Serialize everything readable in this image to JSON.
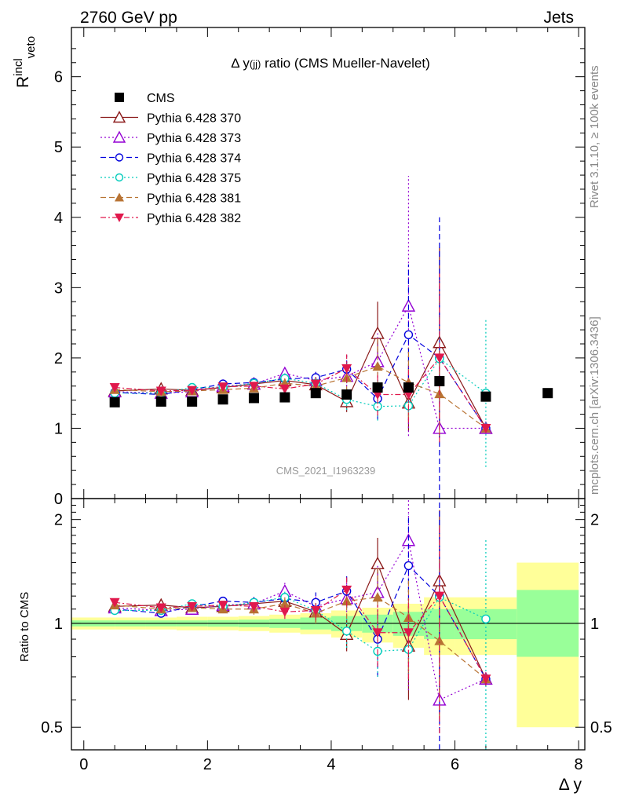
{
  "header": {
    "left": "2760 GeV pp",
    "right": "Jets"
  },
  "side_text": {
    "rivet": "Rivet 3.1.10, ≥ 100k events",
    "mcplots": "mcplots.cern.ch [arXiv:1306.3436]"
  },
  "analysis_id": "CMS_2021_I1963239",
  "chart_data": [
    {
      "type": "scatter",
      "title_main": "Δ y",
      "title_sub": "(jj)",
      "title_rest": " ratio (CMS Mueller-Navelet)",
      "ylabel_main": "R",
      "ylabel_sup": "incl",
      "ylabel_sub": "veto",
      "xlim": [
        -0.2,
        8.1
      ],
      "ylim": [
        0,
        6.7
      ],
      "yticks": [
        0,
        1,
        2,
        3,
        4,
        5,
        6
      ],
      "legend_position": "top-left",
      "series": [
        {
          "name": "CMS",
          "color": "#000000",
          "marker": "square-filled",
          "line": "none",
          "x": [
            0.5,
            1.25,
            1.75,
            2.25,
            2.75,
            3.25,
            3.75,
            4.25,
            4.75,
            5.25,
            5.75,
            6.5,
            7.5
          ],
          "y": [
            1.37,
            1.38,
            1.38,
            1.41,
            1.43,
            1.44,
            1.5,
            1.48,
            1.58,
            1.58,
            1.67,
            1.45,
            1.5
          ]
        },
        {
          "name": "Pythia 6.428 370",
          "color": "#8b1a1a",
          "marker": "triangle-open",
          "line": "solid",
          "x": [
            0.5,
            1.25,
            1.75,
            2.25,
            2.75,
            3.25,
            3.75,
            4.25,
            4.75,
            5.25,
            5.75,
            6.5
          ],
          "y": [
            1.53,
            1.56,
            1.54,
            1.58,
            1.63,
            1.68,
            1.62,
            1.38,
            2.35,
            1.36,
            2.22,
            1.0
          ],
          "err": [
            0.04,
            0.04,
            0.04,
            0.05,
            0.05,
            0.07,
            0.1,
            0.15,
            0.45,
            0.4,
            1.35,
            0.05
          ]
        },
        {
          "name": "Pythia 6.428 373",
          "color": "#9400d3",
          "marker": "triangle-open",
          "line": "dotted",
          "x": [
            0.5,
            1.25,
            1.75,
            2.25,
            2.75,
            3.25,
            3.75,
            4.25,
            4.75,
            5.25,
            5.75,
            6.5
          ],
          "y": [
            1.52,
            1.5,
            1.52,
            1.6,
            1.63,
            1.78,
            1.68,
            1.74,
            1.95,
            2.74,
            1.0,
            1.0
          ],
          "err": [
            0.04,
            0.04,
            0.04,
            0.05,
            0.05,
            0.1,
            0.12,
            0.2,
            0.4,
            1.85,
            0.05,
            0.05
          ]
        },
        {
          "name": "Pythia 6.428 374",
          "color": "#0000dd",
          "marker": "circle-open",
          "line": "dashed",
          "x": [
            0.5,
            1.25,
            1.75,
            2.25,
            2.75,
            3.25,
            3.75,
            4.25,
            4.75,
            5.25,
            5.75,
            6.5
          ],
          "y": [
            1.51,
            1.48,
            1.55,
            1.63,
            1.65,
            1.7,
            1.72,
            1.84,
            1.42,
            2.33,
            2.0,
            1.0
          ],
          "err": [
            0.04,
            0.04,
            0.04,
            0.05,
            0.05,
            0.08,
            0.12,
            0.2,
            0.3,
            1.0,
            2.0,
            0.05
          ]
        },
        {
          "name": "Pythia 6.428 375",
          "color": "#00ccbb",
          "marker": "circle-open",
          "line": "dotted",
          "x": [
            0.5,
            1.25,
            1.75,
            2.25,
            2.75,
            3.25,
            3.75,
            4.25,
            4.75,
            5.25,
            5.75,
            6.5
          ],
          "y": [
            1.5,
            1.5,
            1.58,
            1.58,
            1.64,
            1.71,
            1.64,
            1.41,
            1.31,
            1.32,
            1.99,
            1.5
          ],
          "err": [
            0.04,
            0.04,
            0.04,
            0.05,
            0.05,
            0.08,
            0.1,
            0.15,
            0.2,
            0.2,
            0.4,
            1.05
          ]
        },
        {
          "name": "Pythia 6.428 381",
          "color": "#b87333",
          "marker": "triangle-up-filled",
          "line": "dashed",
          "x": [
            0.5,
            1.25,
            1.75,
            2.25,
            2.75,
            3.25,
            3.75,
            4.25,
            4.75,
            5.25,
            5.75,
            6.5
          ],
          "y": [
            1.55,
            1.52,
            1.53,
            1.55,
            1.57,
            1.64,
            1.6,
            1.72,
            1.88,
            1.65,
            1.49,
            1.0
          ],
          "err": [
            0.04,
            0.04,
            0.04,
            0.05,
            0.05,
            0.07,
            0.1,
            0.2,
            0.4,
            0.5,
            0.6,
            0.05
          ]
        },
        {
          "name": "Pythia 6.428 382",
          "color": "#e0184c",
          "marker": "triangle-down-filled",
          "line": "dashdot",
          "x": [
            0.5,
            1.25,
            1.75,
            2.25,
            2.75,
            3.25,
            3.75,
            4.25,
            4.75,
            5.25,
            5.75,
            6.5
          ],
          "y": [
            1.58,
            1.53,
            1.54,
            1.59,
            1.6,
            1.56,
            1.63,
            1.85,
            1.48,
            1.48,
            2.0,
            1.0
          ],
          "err": [
            0.04,
            0.04,
            0.04,
            0.05,
            0.05,
            0.07,
            0.1,
            0.2,
            0.3,
            0.4,
            1.2,
            0.05
          ]
        }
      ]
    },
    {
      "type": "scatter",
      "ylabel": "Ratio to CMS",
      "xlabel": "Δ y",
      "xlim": [
        -0.2,
        8.1
      ],
      "ylim": [
        0.43,
        2.3
      ],
      "ylog": true,
      "yticks": [
        0.5,
        1,
        2
      ],
      "xticks": [
        0,
        2,
        4,
        6,
        8
      ],
      "reference_line": 1,
      "bands": [
        {
          "x0": -0.2,
          "x1": 0.5,
          "green": [
            0.98,
            1.02
          ],
          "yellow": [
            0.96,
            1.04
          ]
        },
        {
          "x0": 0.5,
          "x1": 1.0,
          "green": [
            0.98,
            1.02
          ],
          "yellow": [
            0.96,
            1.04
          ]
        },
        {
          "x0": 1.0,
          "x1": 1.5,
          "green": [
            0.98,
            1.02
          ],
          "yellow": [
            0.96,
            1.04
          ]
        },
        {
          "x0": 1.5,
          "x1": 2.0,
          "green": [
            0.98,
            1.02
          ],
          "yellow": [
            0.955,
            1.045
          ]
        },
        {
          "x0": 2.0,
          "x1": 2.5,
          "green": [
            0.978,
            1.022
          ],
          "yellow": [
            0.955,
            1.045
          ]
        },
        {
          "x0": 2.5,
          "x1": 3.0,
          "green": [
            0.975,
            1.025
          ],
          "yellow": [
            0.95,
            1.05
          ]
        },
        {
          "x0": 3.0,
          "x1": 3.5,
          "green": [
            0.97,
            1.03
          ],
          "yellow": [
            0.94,
            1.06
          ]
        },
        {
          "x0": 3.5,
          "x1": 4.0,
          "green": [
            0.96,
            1.04
          ],
          "yellow": [
            0.93,
            1.07
          ]
        },
        {
          "x0": 4.0,
          "x1": 4.5,
          "green": [
            0.95,
            1.05
          ],
          "yellow": [
            0.91,
            1.09
          ]
        },
        {
          "x0": 4.5,
          "x1": 5.0,
          "green": [
            0.94,
            1.06
          ],
          "yellow": [
            0.88,
            1.11
          ]
        },
        {
          "x0": 5.0,
          "x1": 5.5,
          "green": [
            0.92,
            1.08
          ],
          "yellow": [
            0.85,
            1.14
          ]
        },
        {
          "x0": 5.5,
          "x1": 6.0,
          "green": [
            0.9,
            1.1
          ],
          "yellow": [
            0.81,
            1.19
          ]
        },
        {
          "x0": 6.0,
          "x1": 7.0,
          "green": [
            0.9,
            1.1
          ],
          "yellow": [
            0.81,
            1.19
          ]
        },
        {
          "x0": 7.0,
          "x1": 8.0,
          "green": [
            0.8,
            1.25
          ],
          "yellow": [
            0.5,
            1.5
          ]
        }
      ],
      "series": [
        {
          "name": "Pythia 6.428 370",
          "x": [
            0.5,
            1.25,
            1.75,
            2.25,
            2.75,
            3.25,
            3.75,
            4.25,
            4.75,
            5.25,
            5.75,
            6.5
          ],
          "y": [
            1.12,
            1.13,
            1.11,
            1.12,
            1.14,
            1.16,
            1.08,
            0.93,
            1.49,
            0.86,
            1.33,
            0.69
          ],
          "err": [
            0.03,
            0.03,
            0.03,
            0.03,
            0.04,
            0.05,
            0.07,
            0.1,
            0.28,
            0.26,
            0.8,
            0.03
          ]
        },
        {
          "name": "Pythia 6.428 373",
          "x": [
            0.5,
            1.25,
            1.75,
            2.25,
            2.75,
            3.25,
            3.75,
            4.25,
            4.75,
            5.25,
            5.75,
            6.5
          ],
          "y": [
            1.11,
            1.09,
            1.1,
            1.13,
            1.14,
            1.24,
            1.12,
            1.18,
            1.23,
            1.74,
            0.6,
            0.69
          ],
          "err": [
            0.03,
            0.03,
            0.03,
            0.03,
            0.04,
            0.07,
            0.08,
            0.13,
            0.25,
            1.1,
            0.03,
            0.03
          ]
        },
        {
          "name": "Pythia 6.428 374",
          "x": [
            0.5,
            1.25,
            1.75,
            2.25,
            2.75,
            3.25,
            3.75,
            4.25,
            4.75,
            5.25,
            5.75,
            6.5
          ],
          "y": [
            1.1,
            1.07,
            1.12,
            1.16,
            1.15,
            1.18,
            1.15,
            1.24,
            0.9,
            1.47,
            1.2,
            0.69
          ],
          "err": [
            0.03,
            0.03,
            0.03,
            0.03,
            0.04,
            0.06,
            0.08,
            0.13,
            0.2,
            0.6,
            1.2,
            0.03
          ]
        },
        {
          "name": "Pythia 6.428 375",
          "x": [
            0.5,
            1.25,
            1.75,
            2.25,
            2.75,
            3.25,
            3.75,
            4.25,
            4.75,
            5.25,
            5.75,
            6.5
          ],
          "y": [
            1.09,
            1.09,
            1.14,
            1.12,
            1.15,
            1.19,
            1.09,
            0.95,
            0.83,
            0.84,
            1.19,
            1.03
          ],
          "err": [
            0.03,
            0.03,
            0.03,
            0.03,
            0.04,
            0.06,
            0.07,
            0.1,
            0.13,
            0.13,
            0.24,
            0.72
          ]
        },
        {
          "name": "Pythia 6.428 381",
          "x": [
            0.5,
            1.25,
            1.75,
            2.25,
            2.75,
            3.25,
            3.75,
            4.25,
            4.75,
            5.25,
            5.75,
            6.5
          ],
          "y": [
            1.13,
            1.1,
            1.11,
            1.1,
            1.1,
            1.14,
            1.07,
            1.16,
            1.19,
            1.04,
            0.89,
            0.69
          ],
          "err": [
            0.03,
            0.03,
            0.03,
            0.03,
            0.04,
            0.05,
            0.07,
            0.13,
            0.25,
            0.32,
            0.36,
            0.03
          ]
        },
        {
          "name": "Pythia 6.428 382",
          "x": [
            0.5,
            1.25,
            1.75,
            2.25,
            2.75,
            3.25,
            3.75,
            4.25,
            4.75,
            5.25,
            5.75,
            6.5
          ],
          "y": [
            1.15,
            1.11,
            1.12,
            1.13,
            1.12,
            1.08,
            1.09,
            1.25,
            0.94,
            0.94,
            1.2,
            0.69
          ],
          "err": [
            0.03,
            0.03,
            0.03,
            0.03,
            0.04,
            0.05,
            0.07,
            0.13,
            0.19,
            0.25,
            0.72,
            0.03
          ]
        }
      ]
    }
  ]
}
